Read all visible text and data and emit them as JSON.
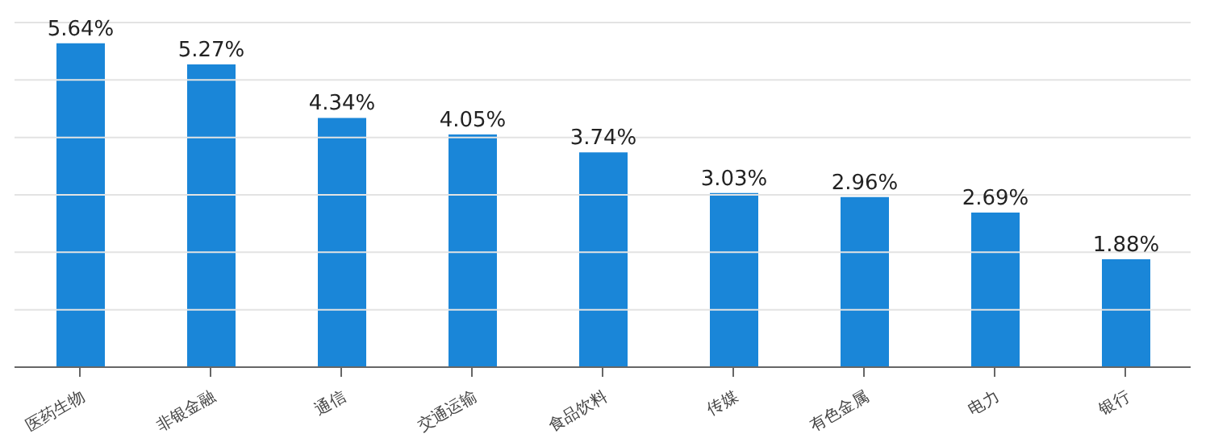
{
  "chart_data": {
    "type": "bar",
    "categories": [
      "医药生物",
      "非银金融",
      "通信",
      "交通运输",
      "食品饮料",
      "传媒",
      "有色金属",
      "电力",
      "银行"
    ],
    "values": [
      5.64,
      5.27,
      4.34,
      4.05,
      3.74,
      3.03,
      2.96,
      2.69,
      1.88
    ],
    "value_labels": [
      "5.64%",
      "5.27%",
      "4.34%",
      "4.05%",
      "3.74%",
      "3.03%",
      "2.96%",
      "2.69%",
      "1.88%"
    ],
    "color": "#1a86d8",
    "ylim": [
      0,
      6
    ],
    "yticks": [
      0,
      1,
      2,
      3,
      4,
      5,
      6
    ],
    "grid": "y",
    "tick_labels": "x"
  }
}
